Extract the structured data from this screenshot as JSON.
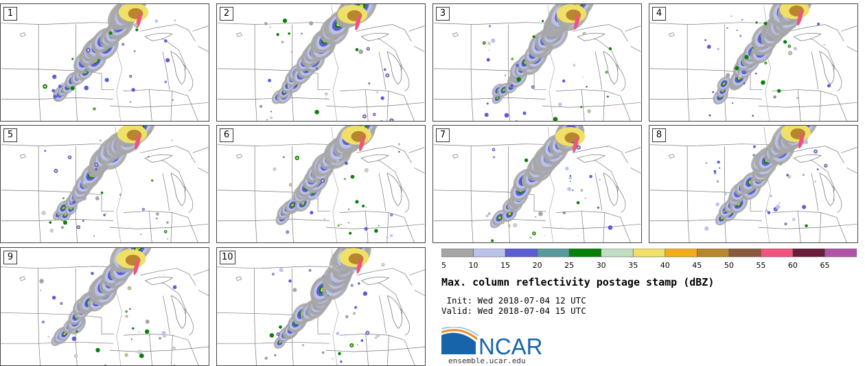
{
  "panels": [
    {
      "label": "1",
      "seed": 11,
      "dx": 0,
      "dy": 0
    },
    {
      "label": "2",
      "seed": 23,
      "dx": 4,
      "dy": 3
    },
    {
      "label": "3",
      "seed": 37,
      "dx": 8,
      "dy": 2
    },
    {
      "label": "4",
      "seed": 41,
      "dx": 18,
      "dy": -4
    },
    {
      "label": "5",
      "seed": 53,
      "dx": -2,
      "dy": 0
    },
    {
      "label": "6",
      "seed": 67,
      "dx": 10,
      "dy": 2
    },
    {
      "label": "7",
      "seed": 71,
      "dx": 6,
      "dy": 4
    },
    {
      "label": "8",
      "seed": 83,
      "dx": 20,
      "dy": -2
    },
    {
      "label": "9",
      "seed": 97,
      "dx": -4,
      "dy": 4
    },
    {
      "label": "10",
      "seed": 103,
      "dx": 6,
      "dy": 2
    }
  ],
  "colorbar": {
    "ticks": [
      "5",
      "10",
      "15",
      "20",
      "25",
      "30",
      "35",
      "40",
      "45",
      "50",
      "55",
      "60",
      "65"
    ],
    "colors": [
      "#a6a6a6",
      "#bcc3eb",
      "#5c5ed6",
      "#58999c",
      "#078007",
      "#c2dec2",
      "#f0e068",
      "#f2ac1a",
      "#b8862f",
      "#8b5a3c",
      "#f2527e",
      "#6b1b3b",
      "#b053a8"
    ]
  },
  "title": "Max. column reflectivity postage stamp (dBZ)",
  "init": " Init: Wed 2018-07-04 12 UTC",
  "valid": "Valid: Wed 2018-07-04 15 UTC",
  "logo": {
    "text": "NCAR",
    "url": "ensemble.ucar.edu",
    "blue": "#1764ab"
  }
}
